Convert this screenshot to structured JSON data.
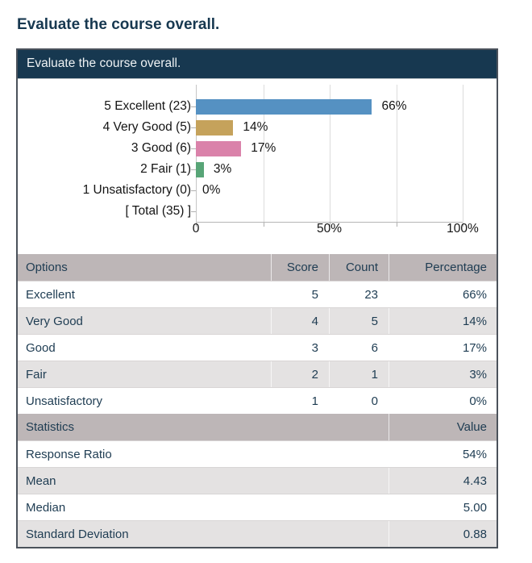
{
  "page": {
    "title": "Evaluate the course overall."
  },
  "panel": {
    "header": "Evaluate the course overall."
  },
  "chart_data": {
    "type": "bar",
    "orientation": "horizontal",
    "title": "Evaluate the course overall.",
    "categories": [
      "5 Excellent (23)",
      "4 Very Good (5)",
      "3 Good (6)",
      "2 Fair (1)",
      "1 Unsatisfactory (0)",
      "[ Total (35) ]"
    ],
    "values": [
      66,
      14,
      17,
      3,
      0,
      null
    ],
    "labels": [
      "66%",
      "14%",
      "17%",
      "3%",
      "0%",
      ""
    ],
    "colors": [
      "#5591c2",
      "#c5a25b",
      "#da82aa",
      "#58a577",
      "",
      ""
    ],
    "xlabel": "",
    "ylabel": "",
    "xlim": [
      0,
      100
    ],
    "xticks": [
      {
        "pct": 0,
        "label": "0"
      },
      {
        "pct": 50,
        "label": "50%"
      },
      {
        "pct": 100,
        "label": "100%"
      }
    ],
    "gridlines_pct": [
      25,
      50,
      75,
      100
    ],
    "grid": true,
    "legend": false
  },
  "options_table": {
    "headers": [
      "Options",
      "Score",
      "Count",
      "Percentage"
    ],
    "rows": [
      {
        "option": "Excellent",
        "score": "5",
        "count": "23",
        "percentage": "66%"
      },
      {
        "option": "Very Good",
        "score": "4",
        "count": "5",
        "percentage": "14%"
      },
      {
        "option": "Good",
        "score": "3",
        "count": "6",
        "percentage": "17%"
      },
      {
        "option": "Fair",
        "score": "2",
        "count": "1",
        "percentage": "3%"
      },
      {
        "option": "Unsatisfactory",
        "score": "1",
        "count": "0",
        "percentage": "0%"
      }
    ]
  },
  "stats_table": {
    "headers": [
      "Statistics",
      "Value"
    ],
    "rows": [
      {
        "label": "Response Ratio",
        "value": "54%"
      },
      {
        "label": "Mean",
        "value": "4.43"
      },
      {
        "label": "Median",
        "value": "5.00"
      },
      {
        "label": "Standard Deviation",
        "value": "0.88"
      }
    ]
  },
  "colors": {
    "navy": "#173850",
    "bar_blue": "#5591c2",
    "bar_tan": "#c5a25b",
    "bar_pink": "#da82aa",
    "bar_green": "#58a577",
    "table_header_bg": "#bdb6b7",
    "row_alt_bg": "#e4e2e2",
    "table_text": "#1e3c52"
  }
}
